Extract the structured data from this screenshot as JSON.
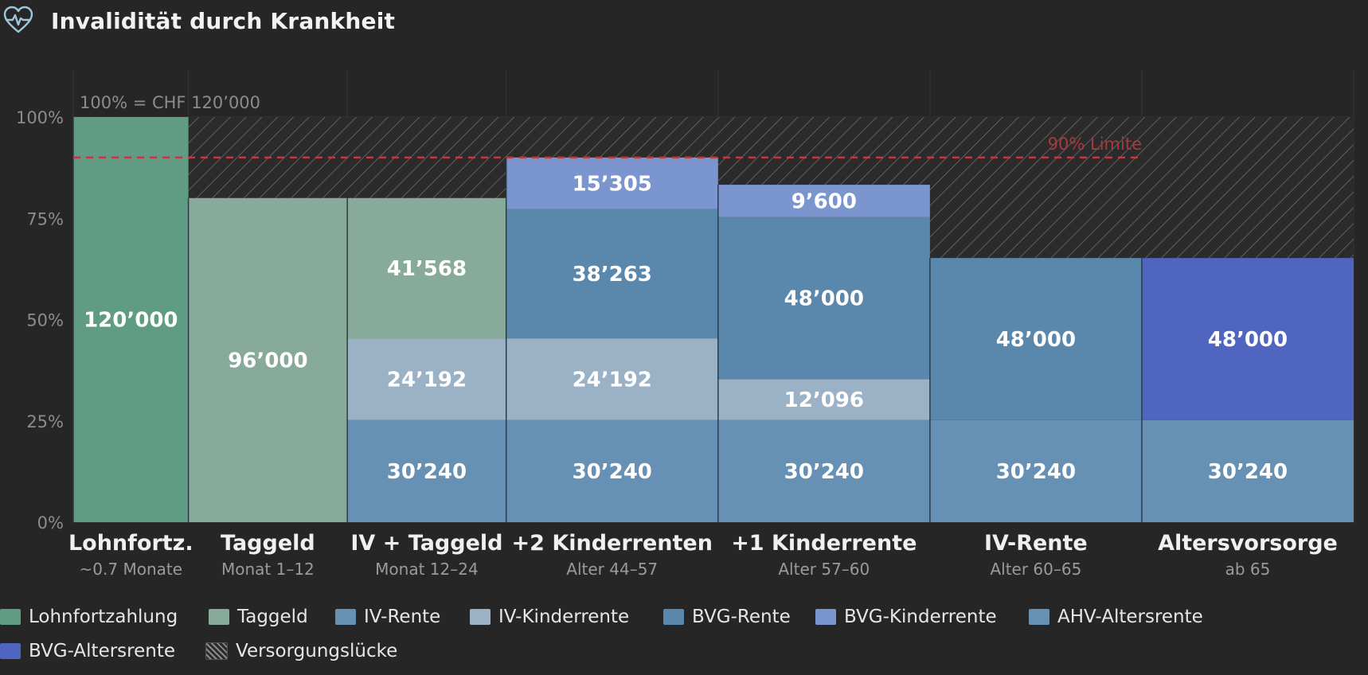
{
  "header": {
    "title": "Invalidität durch Krankheit",
    "icon": "heart-pulse-icon"
  },
  "chart_data": {
    "type": "stacked-bar",
    "annotation_base": "100% = CHF 120’000",
    "limit_label": "90% Limite",
    "limit_value": 90,
    "ylim": [
      0,
      100
    ],
    "yticks": [
      {
        "value": 0,
        "label": "0%"
      },
      {
        "value": 25,
        "label": "25%"
      },
      {
        "value": 50,
        "label": "50%"
      },
      {
        "value": 75,
        "label": "75%"
      },
      {
        "value": 100,
        "label": "100%"
      }
    ],
    "grid": true,
    "legend_position": "bottom",
    "categories": [
      {
        "name": "Lohnfortz.",
        "sub": "~0.7 Monate",
        "weight": 1.0
      },
      {
        "name": "Taggeld",
        "sub": "Monat 1–12",
        "weight": 1.38
      },
      {
        "name": "IV + Taggeld",
        "sub": "Monat 12–24",
        "weight": 1.38
      },
      {
        "name": "+2 Kinderrenten",
        "sub": "Alter 44–57",
        "weight": 1.84
      },
      {
        "name": "+1 Kinderrente",
        "sub": "Alter 57–60",
        "weight": 1.84
      },
      {
        "name": "IV-Rente",
        "sub": "Alter 60–65",
        "weight": 1.84
      },
      {
        "name": "Altersvorsorge",
        "sub": "ab 65",
        "weight": 1.84
      }
    ],
    "series": [
      {
        "name": "Lohnfortzahlung",
        "color": "#5f9c83"
      },
      {
        "name": "Taggeld",
        "color": "#87aa9b"
      },
      {
        "name": "IV-Rente",
        "color": "#6690b4"
      },
      {
        "name": "IV-Kinderrente",
        "color": "#9ab1c6"
      },
      {
        "name": "BVG-Rente",
        "color": "#5a88ad"
      },
      {
        "name": "BVG-Kinderrente",
        "color": "#7b95cf"
      },
      {
        "name": "AHV-Altersrente",
        "color": "#6690b4"
      },
      {
        "name": "BVG-Altersrente",
        "color": "#5065c0"
      },
      {
        "name": "Versorgungslücke",
        "color": "#2b2b2b",
        "pattern": "hatch"
      }
    ],
    "stacks": [
      [
        {
          "series": "Lohnfortzahlung",
          "value": 120000,
          "label": "120’000"
        }
      ],
      [
        {
          "series": "Taggeld",
          "value": 96000,
          "label": "96’000"
        }
      ],
      [
        {
          "series": "IV-Rente",
          "value": 30240,
          "label": "30’240"
        },
        {
          "series": "IV-Kinderrente",
          "value": 24192,
          "label": "24’192"
        },
        {
          "series": "Taggeld",
          "value": 41568,
          "label": "41’568"
        }
      ],
      [
        {
          "series": "IV-Rente",
          "value": 30240,
          "label": "30’240"
        },
        {
          "series": "IV-Kinderrente",
          "value": 24192,
          "label": "24’192"
        },
        {
          "series": "BVG-Rente",
          "value": 38263,
          "label": "38’263"
        },
        {
          "series": "BVG-Kinderrente",
          "value": 15305,
          "label": "15’305"
        }
      ],
      [
        {
          "series": "IV-Rente",
          "value": 30240,
          "label": "30’240"
        },
        {
          "series": "IV-Kinderrente",
          "value": 12096,
          "label": "12’096"
        },
        {
          "series": "BVG-Rente",
          "value": 48000,
          "label": "48’000"
        },
        {
          "series": "BVG-Kinderrente",
          "value": 9600,
          "label": "9’600"
        }
      ],
      [
        {
          "series": "IV-Rente",
          "value": 30240,
          "label": "30’240"
        },
        {
          "series": "BVG-Rente",
          "value": 48000,
          "label": "48’000"
        }
      ],
      [
        {
          "series": "AHV-Altersrente",
          "value": 30240,
          "label": "30’240"
        },
        {
          "series": "BVG-Altersrente",
          "value": 48000,
          "label": "48’000"
        }
      ]
    ],
    "base_value": 120000
  }
}
